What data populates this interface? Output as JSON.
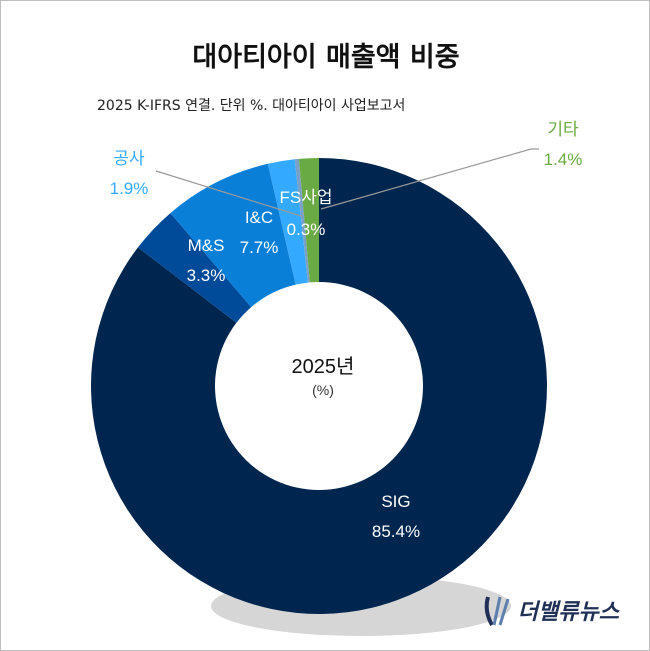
{
  "title": "대아티아이 매출액 비중",
  "subtitle": "2025 K-IFRS 연결. 단위 %. 대아티아이 사업보고서",
  "logo_text": "더밸류뉴스",
  "chart_data": {
    "type": "pie",
    "variant": "donut",
    "center_label": "2025년",
    "center_unit": "(%)",
    "slices": [
      {
        "label": "SIG",
        "value": 85.4,
        "value_label": "85.4%",
        "color": "#00264f",
        "label_color": "#ffffff"
      },
      {
        "label": "M&S",
        "value": 3.3,
        "value_label": "3.3%",
        "color": "#004a9a",
        "label_color": "#ffffff"
      },
      {
        "label": "I&C",
        "value": 7.7,
        "value_label": "7.7%",
        "color": "#0a7fd8",
        "label_color": "#ffffff"
      },
      {
        "label": "공사",
        "value": 1.9,
        "value_label": "1.9%",
        "color": "#33a9ff",
        "label_color": "#33a9ff"
      },
      {
        "label": "FS사업",
        "value": 0.3,
        "value_label": "0.3%",
        "color": "#7aa0c8",
        "label_color": "#ffffff"
      },
      {
        "label": "기타",
        "value": 1.4,
        "value_label": "1.4%",
        "color": "#6aaa44",
        "label_color": "#6aaa44"
      }
    ]
  }
}
